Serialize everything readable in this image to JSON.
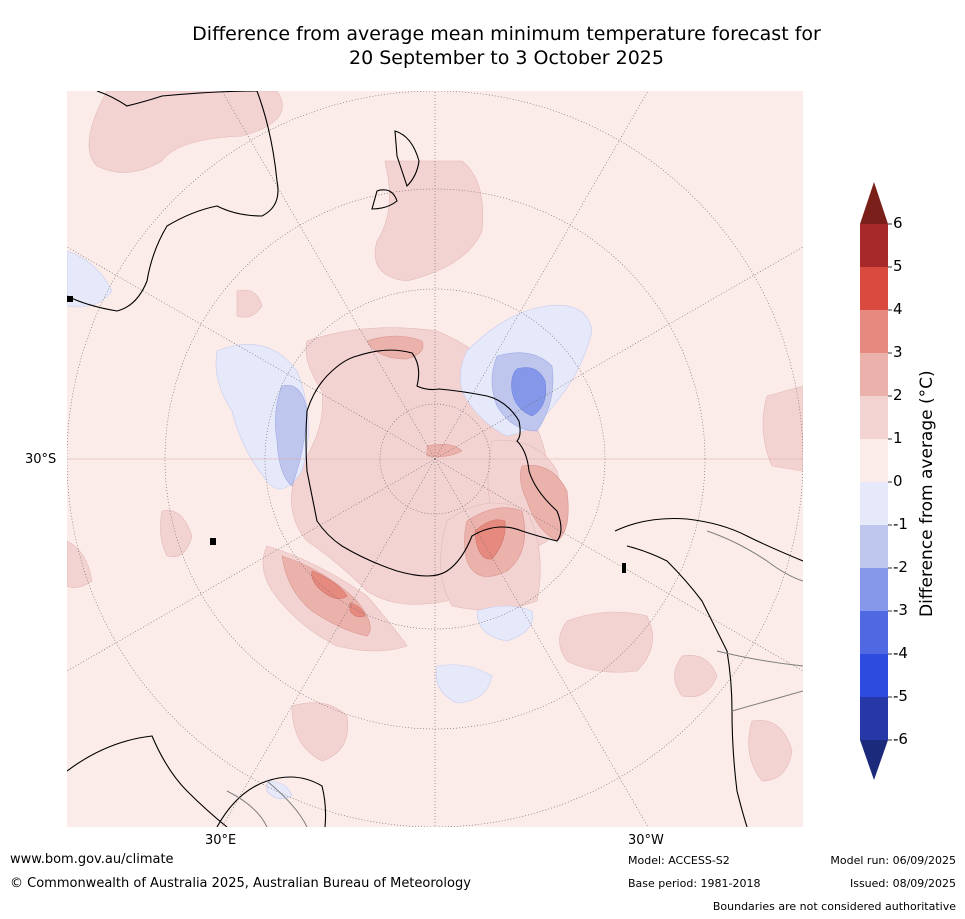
{
  "title_line1": "Difference from average mean minimum temperature forecast for",
  "title_line2": "20 September to 3 October 2025",
  "map": {
    "lat_label": "30°S",
    "lon_labels": [
      "30°E",
      "30°W"
    ],
    "colors": {
      "land_outline": "#000000",
      "border_outline": "#7f7f7f",
      "background_anomaly_0_to_1": "#fbebe9",
      "anomaly_1_to_2": "#f3d3d2",
      "anomaly_2_to_3": "#ebb1ab",
      "anomaly_3_to_4": "#e68a7f",
      "anomaly_minus1_to_0": "#e6e9f9",
      "anomaly_minus2_to_minus1": "#bfc6ee",
      "anomaly_minus3_to_minus2": "#8597e8"
    }
  },
  "colorbar": {
    "axis_label": "Difference from average (°C)",
    "ticks": [
      "6",
      "5",
      "4",
      "3",
      "2",
      "1",
      "0",
      "-1",
      "-2",
      "-3",
      "-4",
      "-5",
      "-6"
    ],
    "bands": [
      "#a7292a",
      "#da4b3f",
      "#e68a7f",
      "#ebb1ab",
      "#f3d3d2",
      "#fbebe9",
      "#e6e9f9",
      "#bfc6ee",
      "#8597e8",
      "#5068e2",
      "#2e4bdf",
      "#2638a8"
    ],
    "over_color": "#7a1f1a",
    "under_color": "#1c2a7c"
  },
  "footer": {
    "url": "www.bom.gov.au/climate",
    "copyright": "© Commonwealth of Australia 2025, Australian Bureau of Meteorology",
    "model": "Model: ACCESS-S2",
    "base_period": "Base period: 1981-2018",
    "model_run": "Model run: 06/09/2025",
    "issued": "Issued: 08/09/2025",
    "disclaimer": "Boundaries are not considered authoritative"
  }
}
